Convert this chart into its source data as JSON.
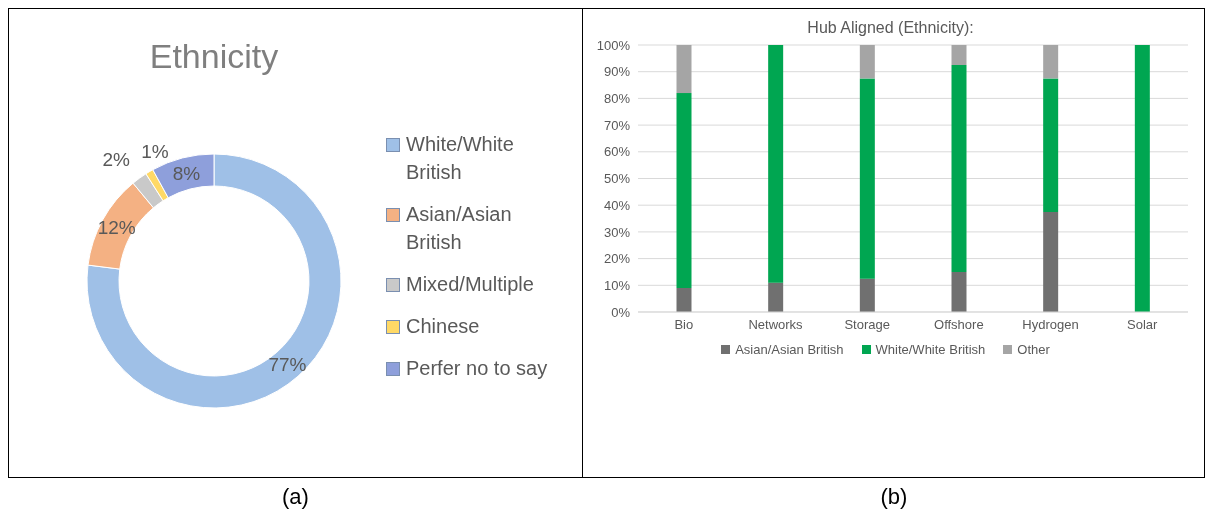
{
  "chart_data": [
    {
      "type": "donut",
      "title": "Ethnicity",
      "categories": [
        "White/White British",
        "Asian/Asian British",
        "Mixed/Multiple",
        "Chinese",
        "Perfer no to say"
      ],
      "values": [
        77,
        12,
        2,
        1,
        8
      ],
      "colors": [
        "#9fc0e7",
        "#f4b183",
        "#c9c9c9",
        "#ffd966",
        "#8e9fdb"
      ],
      "value_labels": [
        "77%",
        "12%",
        "2%",
        "1%",
        "8%"
      ],
      "legend": "right",
      "annotations": [
        "(a)"
      ]
    },
    {
      "type": "bar",
      "title": "Hub Aligned (Ethnicity):",
      "categories": [
        "Bio",
        "Networks",
        "Storage",
        "Offshore",
        "Hydrogen",
        "Solar"
      ],
      "stacked": true,
      "series": [
        {
          "name": "Asian/Asian British",
          "color": "#707070",
          "values": [
            9,
            11,
            12.5,
            15,
            37.5,
            0
          ]
        },
        {
          "name": "White/White British",
          "color": "#00a651",
          "values": [
            73,
            89,
            75,
            77.5,
            50,
            100
          ]
        },
        {
          "name": "Other",
          "color": "#a5a5a5",
          "values": [
            18,
            0,
            12.5,
            7.5,
            12.5,
            0
          ]
        }
      ],
      "ylim": [
        0,
        100
      ],
      "yticks": [
        {
          "value": 0,
          "label": "0%"
        },
        {
          "value": 10,
          "label": "10%"
        },
        {
          "value": 20,
          "label": "20%"
        },
        {
          "value": 30,
          "label": "30%"
        },
        {
          "value": 40,
          "label": "40%"
        },
        {
          "value": 50,
          "label": "50%"
        },
        {
          "value": 60,
          "label": "60%"
        },
        {
          "value": 70,
          "label": "70%"
        },
        {
          "value": 80,
          "label": "80%"
        },
        {
          "value": 90,
          "label": "90%"
        },
        {
          "value": 100,
          "label": "100%"
        }
      ],
      "grid": "y",
      "legend": "bottom",
      "annotations": [
        "(b)"
      ]
    }
  ]
}
